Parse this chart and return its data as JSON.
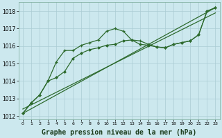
{
  "background_color": "#cce8ee",
  "grid_color": "#aaccd4",
  "line_color": "#2d6a2d",
  "xlabel": "Graphe pression niveau de la mer (hPa)",
  "xlim": [
    -0.5,
    23.5
  ],
  "ylim": [
    1011.8,
    1018.5
  ],
  "yticks": [
    1012,
    1013,
    1014,
    1015,
    1016,
    1017,
    1018
  ],
  "xticks": [
    0,
    1,
    2,
    3,
    4,
    5,
    6,
    7,
    8,
    9,
    10,
    11,
    12,
    13,
    14,
    15,
    16,
    17,
    18,
    19,
    20,
    21,
    22,
    23
  ],
  "series1_x": [
    0,
    1,
    2,
    3,
    4,
    5,
    6,
    7,
    8,
    9,
    10,
    11,
    12,
    13,
    14,
    15,
    16,
    17,
    18,
    19,
    20,
    21,
    22,
    23
  ],
  "series1_y": [
    1012.15,
    1012.75,
    1013.2,
    1014.0,
    1015.1,
    1015.75,
    1015.75,
    1016.05,
    1016.2,
    1016.35,
    1016.85,
    1017.0,
    1016.85,
    1016.35,
    1016.3,
    1016.1,
    1015.95,
    1015.9,
    1016.1,
    1016.2,
    1016.3,
    1016.65,
    1018.0,
    1018.2
  ],
  "series2_x": [
    0,
    1,
    2,
    3,
    4,
    5,
    6,
    7,
    8,
    9,
    10,
    11,
    12,
    13,
    14,
    15,
    16,
    17,
    18,
    19,
    20,
    21,
    22,
    23
  ],
  "series2_y": [
    1012.15,
    1012.75,
    1013.2,
    1014.0,
    1014.2,
    1014.55,
    1015.3,
    1015.6,
    1015.8,
    1015.9,
    1016.05,
    1016.1,
    1016.3,
    1016.35,
    1016.1,
    1016.05,
    1015.95,
    1015.9,
    1016.1,
    1016.2,
    1016.3,
    1016.65,
    1018.0,
    1018.2
  ],
  "series3_x": [
    0,
    23
  ],
  "series3_y": [
    1012.15,
    1018.2
  ],
  "series4_x": [
    0,
    23
  ],
  "series4_y": [
    1012.4,
    1017.9
  ],
  "title_fontsize": 7,
  "tick_fontsize": 5.5
}
